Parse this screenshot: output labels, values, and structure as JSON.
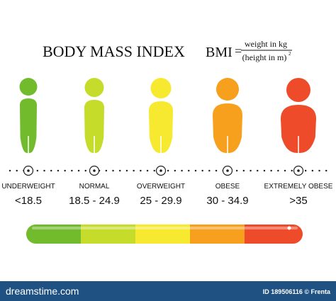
{
  "header": {
    "title": "BODY MASS INDEX",
    "formula": {
      "lhs": "BMI",
      "equals": "=",
      "numerator": "weight in kg",
      "denominator": "(height in m)",
      "exponent": "2"
    }
  },
  "categories": [
    {
      "label": "UNDERWEIGHT",
      "range": "<18.5",
      "color": "#72bb2c"
    },
    {
      "label": "NORMAL",
      "range": "18.5 - 24.9",
      "color": "#c6dc2b"
    },
    {
      "label": "OVERWEIGHT",
      "range": "25 - 29.9",
      "color": "#f6e92f"
    },
    {
      "label": "OBESE",
      "range": "30 - 34.9",
      "color": "#f6a01e"
    },
    {
      "label": "EXTREMELY OBESE",
      "range": ">35",
      "color": "#ee4b2b"
    }
  ],
  "footer": {
    "site": "dreamstime.com",
    "credit": "ID 189506116 © Frenta"
  }
}
